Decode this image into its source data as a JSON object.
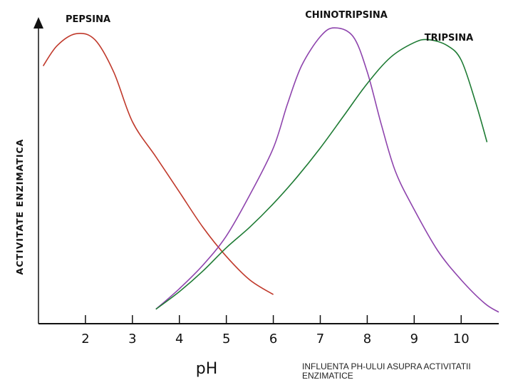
{
  "chart_data": {
    "type": "line",
    "xlabel": "pH",
    "ylabel": "ACTIVITATE ENZIMATICA",
    "xlim": [
      1,
      10.8
    ],
    "ylim": [
      0,
      100
    ],
    "x_ticks": [
      2,
      3,
      4,
      5,
      6,
      7,
      8,
      9,
      10
    ],
    "tick_labels": [
      "2",
      "3",
      "4",
      "5",
      "6",
      "7",
      "8",
      "9",
      "10"
    ],
    "grid": false,
    "series": [
      {
        "name": "PEPSINA",
        "color": "#c0392b",
        "points": [
          [
            1.1,
            86
          ],
          [
            1.4,
            93
          ],
          [
            1.8,
            97
          ],
          [
            2.2,
            95
          ],
          [
            2.6,
            84
          ],
          [
            3.0,
            67
          ],
          [
            3.5,
            55
          ],
          [
            4.0,
            43
          ],
          [
            4.5,
            31
          ],
          [
            5.0,
            21
          ],
          [
            5.5,
            13
          ],
          [
            6.0,
            8
          ]
        ]
      },
      {
        "name": "CHINOTRIPSINA",
        "color": "#8e44ad",
        "points": [
          [
            3.5,
            3
          ],
          [
            4.0,
            10
          ],
          [
            4.5,
            18
          ],
          [
            5.0,
            28
          ],
          [
            5.5,
            42
          ],
          [
            6.0,
            58
          ],
          [
            6.3,
            73
          ],
          [
            6.6,
            86
          ],
          [
            7.0,
            96
          ],
          [
            7.3,
            99
          ],
          [
            7.7,
            96
          ],
          [
            8.0,
            84
          ],
          [
            8.3,
            66
          ],
          [
            8.6,
            50
          ],
          [
            9.0,
            37
          ],
          [
            9.5,
            23
          ],
          [
            10.0,
            13
          ],
          [
            10.5,
            5
          ],
          [
            10.8,
            2
          ]
        ]
      },
      {
        "name": "TRIPSINA",
        "color": "#1e7b34",
        "points": [
          [
            3.5,
            3
          ],
          [
            4.0,
            9
          ],
          [
            4.5,
            16
          ],
          [
            5.0,
            24
          ],
          [
            5.5,
            31
          ],
          [
            6.0,
            39
          ],
          [
            6.5,
            48
          ],
          [
            7.0,
            58
          ],
          [
            7.5,
            69
          ],
          [
            8.0,
            80
          ],
          [
            8.5,
            89
          ],
          [
            9.0,
            94
          ],
          [
            9.3,
            95
          ],
          [
            9.7,
            93
          ],
          [
            10.0,
            88
          ],
          [
            10.3,
            74
          ],
          [
            10.55,
            60
          ]
        ]
      }
    ]
  },
  "caption": "INFLUENTA PH-ULUI ASUPRA ACTIVITATII ENZIMATICE"
}
